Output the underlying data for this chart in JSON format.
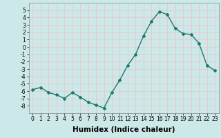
{
  "x": [
    0,
    1,
    2,
    3,
    4,
    5,
    6,
    7,
    8,
    9,
    10,
    11,
    12,
    13,
    14,
    15,
    16,
    17,
    18,
    19,
    20,
    21,
    22,
    23
  ],
  "y": [
    -5.8,
    -5.5,
    -6.2,
    -6.5,
    -7.0,
    -6.2,
    -6.8,
    -7.5,
    -7.9,
    -8.3,
    -6.2,
    -4.5,
    -2.5,
    -1.0,
    1.5,
    3.5,
    4.8,
    4.4,
    2.5,
    1.8,
    1.7,
    0.5,
    -2.5,
    -3.2
  ],
  "line_color": "#1a7a6e",
  "marker": "D",
  "marker_size": 2.0,
  "bg_color": "#cce8e8",
  "grid_color": "#f0c0c0",
  "xlabel": "Humidex (Indice chaleur)",
  "ylim": [
    -9,
    6
  ],
  "xlim": [
    -0.5,
    23.5
  ],
  "yticks": [
    -8,
    -7,
    -6,
    -5,
    -4,
    -3,
    -2,
    -1,
    0,
    1,
    2,
    3,
    4,
    5
  ],
  "xticks": [
    0,
    1,
    2,
    3,
    4,
    5,
    6,
    7,
    8,
    9,
    10,
    11,
    12,
    13,
    14,
    15,
    16,
    17,
    18,
    19,
    20,
    21,
    22,
    23
  ],
  "xlabel_fontsize": 7.5,
  "tick_fontsize": 5.5,
  "line_width": 1.0
}
